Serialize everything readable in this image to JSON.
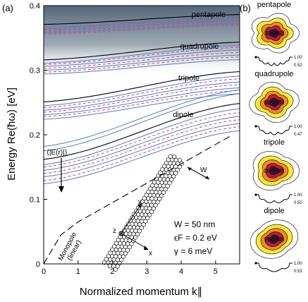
{
  "panel_a_label": "(a)",
  "panel_b_label": "(b)",
  "chart_data": {
    "type": "line",
    "xlabel": "Normalized momentum k∥",
    "ylabel": "Energy Re(ħω) [eV]",
    "xlim": [
      0,
      5.7
    ],
    "ylim": [
      0,
      0.4
    ],
    "x_ticks": [
      "0",
      "1",
      "2",
      "3",
      "4",
      "5"
    ],
    "y_ticks": [
      "0",
      "0.1",
      "0.2",
      "0.3",
      "0.4"
    ],
    "band_groups": [
      {
        "name": "dipole",
        "e0": 0.12,
        "blue": [
          0.154,
          0.145,
          0.135,
          0.124
        ],
        "red": [
          0.15,
          0.14,
          0.129
        ],
        "black": 0.162,
        "e5": [
          0.239,
          0.227,
          0.216,
          0.205
        ],
        "red5": [
          0.233,
          0.222,
          0.211
        ],
        "black5": 0.247
      },
      {
        "name": "tripole",
        "e0": 0.22,
        "blue": [
          0.245,
          0.238,
          0.231,
          0.224
        ],
        "red": [
          0.242,
          0.235,
          0.228
        ],
        "black": 0.251,
        "e5": [
          0.29,
          0.281,
          0.272,
          0.263
        ],
        "red5": [
          0.286,
          0.277,
          0.268
        ],
        "black5": 0.297
      },
      {
        "name": "quadrupole",
        "e0": 0.3,
        "blue": [
          0.311,
          0.306,
          0.3,
          0.294
        ],
        "red": [
          0.309,
          0.303,
          0.297
        ],
        "black": 0.316,
        "e5": [
          0.338,
          0.331,
          0.323,
          0.316
        ],
        "red5": [
          0.335,
          0.327,
          0.32
        ],
        "black5": 0.343
      },
      {
        "name": "pentapole",
        "e0": 0.37,
        "blue": [
          0.366,
          0.362,
          0.358
        ],
        "red": [
          0.364,
          0.36,
          0.356
        ],
        "black": 0.371,
        "e5": [
          0.382,
          0.377,
          0.372
        ],
        "red5": [
          0.38,
          0.375,
          0.37
        ],
        "black5": 0.386
      }
    ],
    "extra_blue_segments": [
      {
        "x": [
          0,
          5.6
        ],
        "y": [
          0.175,
          0.262
        ]
      },
      {
        "x": [
          0,
          5.6
        ],
        "y": [
          0.182,
          0.268
        ]
      }
    ],
    "monopole": {
      "x": [
        0,
        0.5,
        1,
        1.5,
        2,
        2.5,
        3,
        3.5,
        4,
        4.5,
        5,
        5.5
      ],
      "y": [
        0,
        0.045,
        0.065,
        0.08,
        0.095,
        0.11,
        0.125,
        0.14,
        0.155,
        0.17,
        0.185,
        0.2
      ]
    }
  },
  "mode_labels": {
    "pentapole": "pentapole",
    "quadrupole": "quadrupole",
    "tripole": "tripole",
    "dipole": "dipole"
  },
  "monopole_label_line1": "Monopole",
  "monopole_label_line2": "(linear)",
  "field_label": "⟨|E(r)|⟩",
  "params": {
    "W": "W = 50 nm",
    "eF": "ϵF = 0.2 eV",
    "gamma": "γ = 6 meV"
  },
  "ribbon_axis_labels": {
    "x": "x",
    "y": "y",
    "z": "z",
    "w": "W"
  },
  "panel_b": [
    {
      "name": "pentapole",
      "max": "1.00",
      "min": "0.52"
    },
    {
      "name": "quadrupole",
      "max": "1.00",
      "min": "0.47"
    },
    {
      "name": "tripole",
      "max": "1.00",
      "min": "0.50"
    },
    {
      "name": "dipole",
      "max": "1.00",
      "min": "0.53"
    }
  ],
  "colors": {
    "blue": "#4f7fc0",
    "red_dashed": "#d0457a",
    "black": "#000000",
    "shade_dark": "#5a6a7a",
    "map_dark": "#3a0a3a",
    "map_mid": "#b51d3a",
    "map_orange": "#f08a24",
    "map_yellow": "#f7e832"
  }
}
